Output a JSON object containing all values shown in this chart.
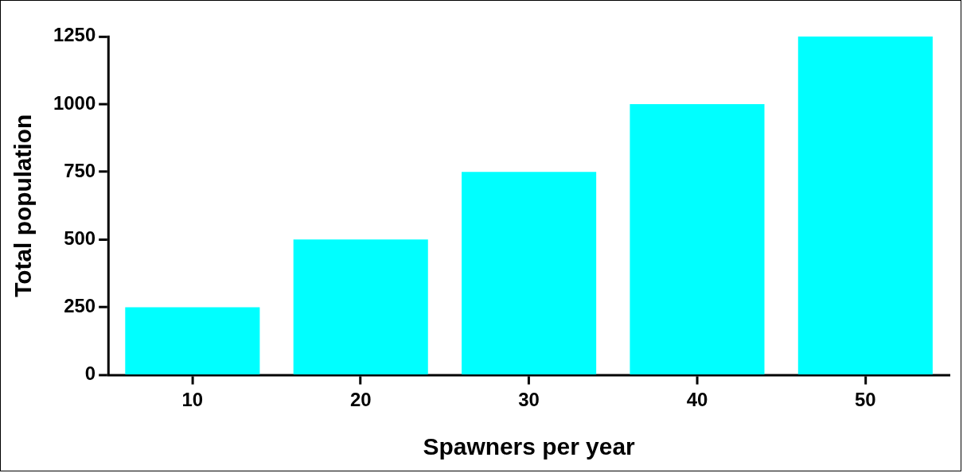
{
  "chart_data": {
    "type": "bar",
    "xlabel": "Spawners per year",
    "ylabel": "Total population",
    "categories": [
      "10",
      "20",
      "30",
      "40",
      "50"
    ],
    "values": [
      250,
      500,
      750,
      1000,
      1250
    ],
    "color": "#00ffff",
    "ylim": [
      0,
      1250
    ],
    "yticks": [
      0,
      250,
      500,
      750,
      1000,
      1250
    ],
    "grid": false,
    "legend": false
  }
}
